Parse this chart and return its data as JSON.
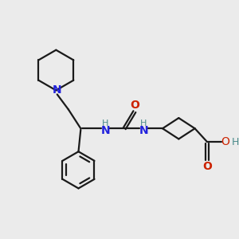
{
  "background_color": "#ebebeb",
  "bond_color": "#1a1a1a",
  "N_color": "#2222dd",
  "O_color": "#cc2200",
  "H_color": "#4a8a8a",
  "line_width": 1.6,
  "figsize": [
    3.0,
    3.0
  ],
  "dpi": 100,
  "xlim": [
    0,
    10
  ],
  "ylim": [
    0,
    10
  ]
}
